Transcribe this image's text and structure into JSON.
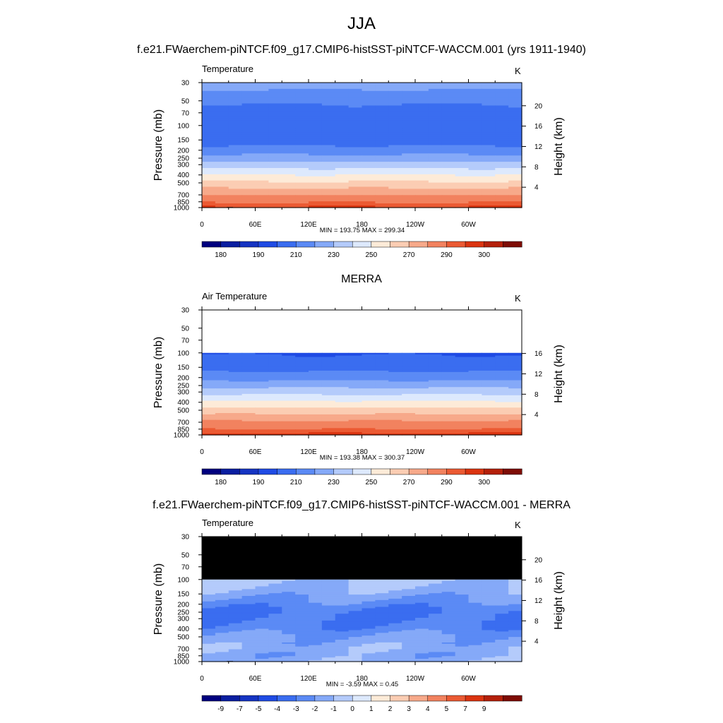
{
  "figure": {
    "title": "JJA",
    "model_title": "f.e21.FWaerchem-piNTCF.f09_g17.CMIP6-histSST-piNTCF-WACCM.001 (yrs 1911-1940)",
    "obs_title": "MERRA",
    "diff_title": "f.e21.FWaerchem-piNTCF.f09_g17.CMIP6-histSST-piNTCF-WACCM.001 - MERRA"
  },
  "chart_data": [
    {
      "type": "heatmap",
      "name": "model",
      "variable_label": "Temperature",
      "units": "K",
      "ylabel": "Pressure (mb)",
      "ylabel_right": "Height (km)",
      "x_ticks": [
        "0",
        "60E",
        "120E",
        "180",
        "120W",
        "60W"
      ],
      "x_tick_values": [
        0,
        60,
        120,
        180,
        240,
        300
      ],
      "xlim": [
        0,
        360
      ],
      "y_ticks": [
        "30",
        "50",
        "70",
        "100",
        "150",
        "200",
        "250",
        "300",
        "400",
        "500",
        "700",
        "850",
        "1000"
      ],
      "y_tick_values": [
        30,
        50,
        70,
        100,
        150,
        200,
        250,
        300,
        400,
        500,
        700,
        850,
        1000
      ],
      "ylim": [
        30,
        1000
      ],
      "y_scale": "log",
      "height_ticks": [
        "4",
        "8",
        "12",
        "16",
        "20"
      ],
      "height_tick_values": [
        4,
        8,
        12,
        16,
        20
      ],
      "min_max": "MIN = 193.75  MAX = 299.34",
      "profile_p": [
        30,
        50,
        70,
        100,
        150,
        200,
        250,
        300,
        400,
        500,
        700,
        850,
        1000
      ],
      "profile_t": [
        225,
        212,
        206,
        202,
        205,
        214,
        225,
        234,
        250,
        262,
        280,
        289,
        296
      ],
      "colorbar_labels": [
        "180",
        "190",
        "210",
        "230",
        "250",
        "270",
        "290",
        "300"
      ],
      "colorbar_levels": [
        175,
        180,
        185,
        190,
        200,
        210,
        220,
        230,
        240,
        250,
        260,
        270,
        280,
        290,
        295,
        300,
        305
      ]
    },
    {
      "type": "heatmap",
      "name": "obs",
      "variable_label": "Air Temperature",
      "units": "K",
      "ylabel": "Pressure (mb)",
      "ylabel_right": "Height (km)",
      "x_ticks": [
        "0",
        "60E",
        "120E",
        "180",
        "120W",
        "60W"
      ],
      "x_tick_values": [
        0,
        60,
        120,
        180,
        240,
        300
      ],
      "xlim": [
        0,
        360
      ],
      "y_ticks": [
        "30",
        "50",
        "70",
        "100",
        "150",
        "200",
        "250",
        "300",
        "400",
        "500",
        "700",
        "850",
        "1000"
      ],
      "y_tick_values": [
        30,
        50,
        70,
        100,
        150,
        200,
        250,
        300,
        400,
        500,
        700,
        850,
        1000
      ],
      "ylim": [
        30,
        1000
      ],
      "y_scale": "log",
      "height_ticks": [
        "4",
        "8",
        "12",
        "16"
      ],
      "height_tick_values": [
        4,
        8,
        12,
        16
      ],
      "min_max": "MIN = 193.38  MAX = 300.37",
      "data_top_p": 100,
      "profile_p": [
        100,
        150,
        200,
        250,
        300,
        400,
        500,
        700,
        850,
        1000
      ],
      "profile_t": [
        199,
        206,
        216,
        227,
        236,
        252,
        264,
        282,
        290,
        297
      ],
      "colorbar_labels": [
        "180",
        "190",
        "210",
        "230",
        "250",
        "270",
        "290",
        "300"
      ],
      "colorbar_levels": [
        175,
        180,
        185,
        190,
        200,
        210,
        220,
        230,
        240,
        250,
        260,
        270,
        280,
        290,
        295,
        300,
        305
      ]
    },
    {
      "type": "heatmap",
      "name": "diff",
      "variable_label": "Temperature",
      "units": "K",
      "ylabel": "Pressure (mb)",
      "ylabel_right": "Height (km)",
      "x_ticks": [
        "0",
        "60E",
        "120E",
        "180",
        "120W",
        "60W"
      ],
      "x_tick_values": [
        0,
        60,
        120,
        180,
        240,
        300
      ],
      "xlim": [
        0,
        360
      ],
      "y_ticks": [
        "30",
        "50",
        "70",
        "100",
        "150",
        "200",
        "250",
        "300",
        "400",
        "500",
        "700",
        "850",
        "1000"
      ],
      "y_tick_values": [
        30,
        50,
        70,
        100,
        150,
        200,
        250,
        300,
        400,
        500,
        700,
        850,
        1000
      ],
      "ylim": [
        30,
        1000
      ],
      "y_scale": "log",
      "height_ticks": [
        "4",
        "8",
        "12",
        "16",
        "20"
      ],
      "height_tick_values": [
        4,
        8,
        12,
        16,
        20
      ],
      "min_max": "MIN =  -3.59  MAX =   0.45",
      "missing_above_p": 100,
      "profile_p": [
        100,
        150,
        200,
        250,
        300,
        400,
        500,
        700,
        850,
        1000
      ],
      "profile_t": [
        -0.8,
        -1.5,
        -2.5,
        -3.2,
        -3.1,
        -2.6,
        -1.8,
        -1.3,
        -1.6,
        -1.2
      ],
      "colorbar_labels": [
        "-9",
        "-7",
        "-5",
        "-4",
        "-3",
        "-2",
        "-1",
        "0",
        "1",
        "2",
        "3",
        "4",
        "5",
        "7",
        "9"
      ],
      "colorbar_levels": [
        -11,
        -9,
        -7,
        -5,
        -4,
        -3,
        -2,
        -1,
        0,
        1,
        2,
        3,
        4,
        5,
        7,
        9,
        11
      ]
    }
  ],
  "colors": {
    "palette": [
      "#00007f",
      "#0a1ea0",
      "#1534c2",
      "#1f4be4",
      "#3a6df0",
      "#5b8af5",
      "#85a9f8",
      "#b4cbfb",
      "#dde9fd",
      "#fdebd8",
      "#fbcdb3",
      "#f7a98a",
      "#f2825f",
      "#eb5a33",
      "#db3410",
      "#b4200a",
      "#7e0c05"
    ],
    "missing": "#000000",
    "topography": "#000000"
  }
}
